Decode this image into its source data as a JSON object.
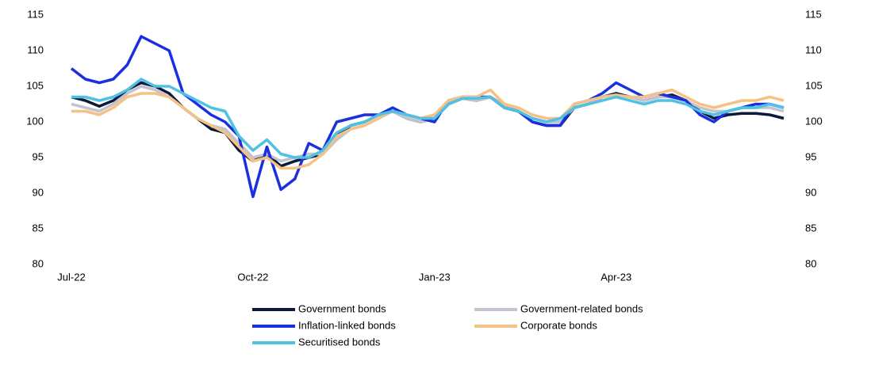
{
  "chart_data": {
    "type": "line",
    "categories": [
      "Jul-22",
      null,
      null,
      null,
      null,
      null,
      null,
      null,
      null,
      null,
      null,
      null,
      null,
      "Oct-22",
      null,
      null,
      null,
      null,
      null,
      null,
      null,
      null,
      null,
      null,
      null,
      null,
      "Jan-23",
      null,
      null,
      null,
      null,
      null,
      null,
      null,
      null,
      null,
      null,
      null,
      null,
      "Apr-23",
      null,
      null,
      null,
      null,
      null,
      null,
      null,
      null,
      null,
      null,
      null,
      null
    ],
    "ylim": [
      80,
      115
    ],
    "yticks": [
      80,
      85,
      90,
      95,
      100,
      105,
      110,
      115
    ],
    "y2lim": [
      80,
      115
    ],
    "y2ticks": [
      80,
      85,
      90,
      95,
      100,
      105,
      110,
      115
    ],
    "series": [
      {
        "name": "Government bonds",
        "color": "#0b1a3c",
        "values": [
          103.5,
          103,
          102.2,
          103,
          104.5,
          105.5,
          105,
          104,
          102,
          100.5,
          99,
          98.5,
          96,
          94.5,
          95.5,
          93.8,
          94.5,
          95,
          95.5,
          98,
          99.5,
          100,
          101,
          101.5,
          100.5,
          100,
          100.5,
          102.5,
          103.3,
          103,
          103.5,
          102,
          101.5,
          100,
          99.5,
          99.5,
          102,
          102.5,
          103.5,
          104,
          103.5,
          103,
          103.5,
          103.8,
          103,
          101.5,
          100.5,
          101,
          101.2,
          101.2,
          101,
          100.5
        ]
      },
      {
        "name": "Government-related bonds",
        "color": "#c3c3cf",
        "values": [
          102.5,
          102,
          101.5,
          102.5,
          104,
          105,
          104.5,
          103.5,
          102,
          100.5,
          99.5,
          99,
          97,
          95,
          95.5,
          94.5,
          95,
          95.5,
          95.5,
          97.5,
          99,
          99.5,
          100.5,
          101.5,
          100.5,
          100,
          100.5,
          102.5,
          103.3,
          103,
          103.5,
          102.5,
          101.5,
          100.5,
          100,
          100,
          102,
          102.5,
          103.5,
          103.8,
          103.5,
          103,
          103.5,
          103.5,
          103,
          102,
          101.5,
          101.5,
          102,
          102,
          102,
          101.5
        ]
      },
      {
        "name": "Inflation-linked bonds",
        "color": "#1a2fe0",
        "values": [
          107.5,
          106,
          105.5,
          106,
          108,
          112,
          111,
          110,
          104,
          102.5,
          101,
          100,
          98,
          89.5,
          96.5,
          90.5,
          92,
          97,
          96,
          100,
          100.5,
          101,
          101,
          102,
          101,
          100.5,
          100,
          103,
          103.5,
          103.5,
          103.5,
          102,
          101.5,
          100,
          99.5,
          99.5,
          102.5,
          103,
          104,
          105.5,
          104.5,
          103.5,
          104,
          103.5,
          103,
          101,
          100,
          101.5,
          102,
          102.5,
          102.5,
          102
        ]
      },
      {
        "name": "Corporate bonds",
        "color": "#f5c184",
        "values": [
          101.5,
          101.5,
          101,
          102,
          103.5,
          104,
          104,
          103.5,
          102,
          100.5,
          99.5,
          98.5,
          96.5,
          94.5,
          95,
          93.5,
          93.5,
          94,
          95.5,
          98,
          99,
          99.5,
          100.5,
          101.5,
          101,
          100.5,
          101,
          103,
          103.5,
          103.5,
          104.5,
          102.5,
          102,
          101,
          100.5,
          100.5,
          102.5,
          103,
          103.5,
          103.8,
          103.5,
          103.5,
          104,
          104.5,
          103.5,
          102.5,
          102,
          102.5,
          103,
          103,
          103.5,
          103
        ]
      },
      {
        "name": "Securitised bonds",
        "color": "#4fc1e2",
        "values": [
          103.5,
          103.5,
          103,
          103.5,
          104.5,
          106,
          105,
          105,
          104,
          103,
          102,
          101.5,
          98,
          96,
          97.5,
          95.5,
          95,
          95,
          96,
          98.5,
          99.5,
          100,
          101,
          101.5,
          101,
          100.5,
          100.5,
          102.5,
          103.3,
          103.3,
          103.5,
          102,
          101.5,
          100.5,
          100,
          100.5,
          102,
          102.5,
          103,
          103.5,
          103,
          102.5,
          103,
          103,
          102.5,
          101.5,
          101,
          101.5,
          102,
          102,
          102.5,
          102
        ]
      }
    ]
  }
}
